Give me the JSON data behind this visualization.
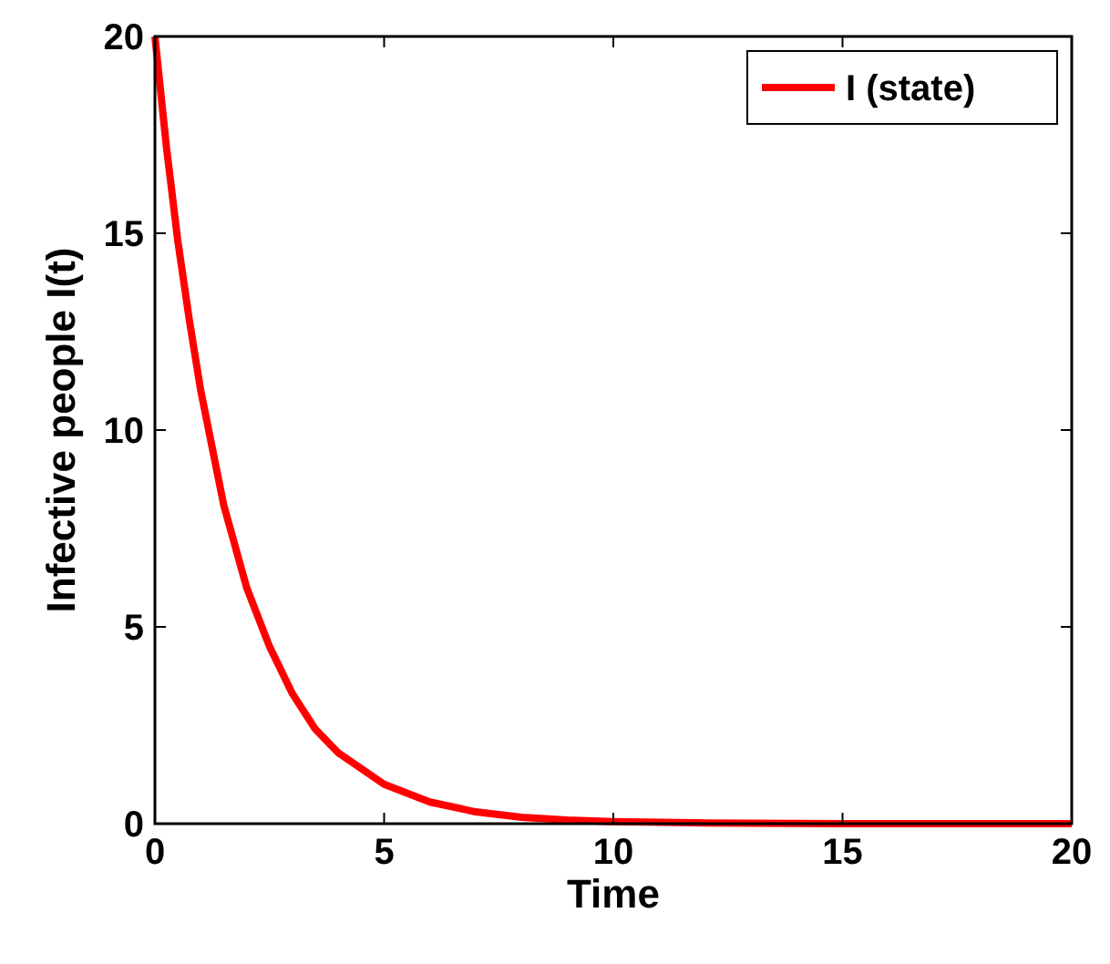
{
  "chart_data": {
    "type": "line",
    "xlabel": "Time",
    "ylabel": "Infective people I(t)",
    "xlim": [
      0,
      20
    ],
    "ylim": [
      0,
      20
    ],
    "xticks": [
      0,
      5,
      10,
      15,
      20
    ],
    "yticks": [
      0,
      5,
      10,
      15,
      20
    ],
    "grid": false,
    "legend": "top right",
    "line_style": "solid",
    "marker": "none",
    "x": [
      0,
      0.25,
      0.5,
      0.75,
      1,
      1.5,
      2,
      2.5,
      3,
      3.5,
      4,
      5,
      6,
      7,
      8,
      9,
      10,
      12,
      15,
      20
    ],
    "series": [
      {
        "name": "I (state)",
        "color": "#ff0000",
        "values": [
          20,
          17.2,
          14.8,
          12.8,
          11,
          8.1,
          6,
          4.5,
          3.3,
          2.4,
          1.8,
          1,
          0.55,
          0.3,
          0.16,
          0.09,
          0.05,
          0.02,
          0,
          0
        ]
      }
    ]
  }
}
